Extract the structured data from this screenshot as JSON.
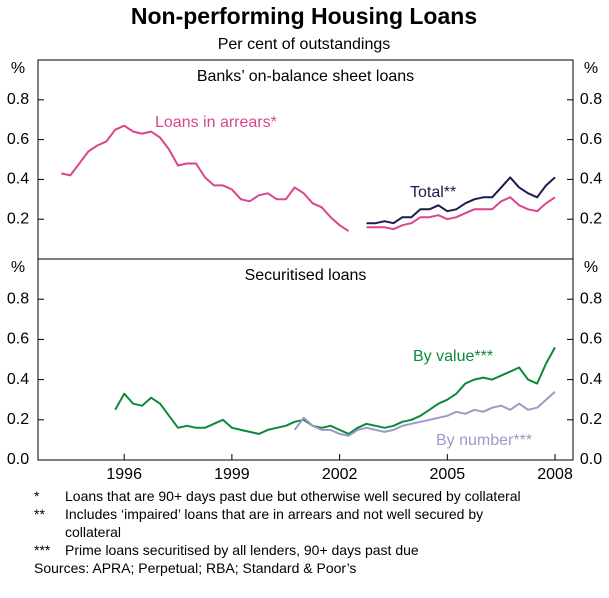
{
  "title": "Non-performing Housing Loans",
  "subtitle": "Per cent of outstandings",
  "chart_data": [
    {
      "type": "line",
      "title": "Banks’ on-balance sheet loans",
      "y_unit": "%",
      "xlim": [
        1993.6,
        2008.5
      ],
      "ylim": [
        0,
        1.0
      ],
      "yticks": [
        0.2,
        0.4,
        0.6,
        0.8
      ],
      "x": [
        1994.25,
        1994.5,
        1994.75,
        1995,
        1995.25,
        1995.5,
        1995.75,
        1996,
        1996.25,
        1996.5,
        1996.75,
        1997,
        1997.25,
        1997.5,
        1997.75,
        1998,
        1998.25,
        1998.5,
        1998.75,
        1999,
        1999.25,
        1999.5,
        1999.75,
        2000,
        2000.25,
        2000.5,
        2000.75,
        2001,
        2001.25,
        2001.5,
        2001.75,
        2002,
        2002.25,
        2002.5,
        2002.75,
        2003,
        2003.25,
        2003.5,
        2003.75,
        2004,
        2004.25,
        2004.5,
        2004.75,
        2005,
        2005.25,
        2005.5,
        2005.75,
        2006,
        2006.25,
        2006.5,
        2006.75,
        2007,
        2007.25,
        2007.5,
        2007.75,
        2008
      ],
      "series": [
        {
          "name": "Loans in arrears*",
          "color": "#d8468c",
          "values": [
            0.43,
            0.42,
            0.48,
            0.54,
            0.57,
            0.59,
            0.65,
            0.67,
            0.64,
            0.63,
            0.64,
            0.61,
            0.55,
            0.47,
            0.48,
            0.48,
            0.41,
            0.37,
            0.37,
            0.35,
            0.3,
            0.29,
            0.32,
            0.33,
            0.3,
            0.3,
            0.36,
            0.33,
            0.28,
            0.26,
            0.21,
            0.17,
            0.14,
            null,
            0.16,
            0.16,
            0.16,
            0.15,
            0.17,
            0.18,
            0.21,
            0.21,
            0.22,
            0.2,
            0.21,
            0.23,
            0.25,
            0.25,
            0.25,
            0.29,
            0.31,
            0.27,
            0.25,
            0.24,
            0.28,
            0.31
          ]
        },
        {
          "name": "Total**",
          "color": "#1b1b4d",
          "values": [
            null,
            null,
            null,
            null,
            null,
            null,
            null,
            null,
            null,
            null,
            null,
            null,
            null,
            null,
            null,
            null,
            null,
            null,
            null,
            null,
            null,
            null,
            null,
            null,
            null,
            null,
            null,
            null,
            null,
            null,
            null,
            null,
            null,
            null,
            0.18,
            0.18,
            0.19,
            0.18,
            0.21,
            0.21,
            0.25,
            0.25,
            0.27,
            0.24,
            0.25,
            0.28,
            0.3,
            0.31,
            0.31,
            0.36,
            0.41,
            0.36,
            0.33,
            0.31,
            0.37,
            0.41
          ]
        }
      ]
    },
    {
      "type": "line",
      "title": "Securitised loans",
      "y_unit": "%",
      "xlim": [
        1993.6,
        2008.5
      ],
      "ylim": [
        0,
        1.0
      ],
      "yticks": [
        {
          "value": 0,
          "label": "0.0"
        },
        0.2,
        0.4,
        0.6,
        0.8
      ],
      "xticks": [
        1996,
        1999,
        2002,
        2005,
        2008
      ],
      "x": [
        1995.75,
        1996,
        1996.25,
        1996.5,
        1996.75,
        1997,
        1997.25,
        1997.5,
        1997.75,
        1998,
        1998.25,
        1998.5,
        1998.75,
        1999,
        1999.25,
        1999.5,
        1999.75,
        2000,
        2000.25,
        2000.5,
        2000.75,
        2001,
        2001.25,
        2001.5,
        2001.75,
        2002,
        2002.25,
        2002.5,
        2002.75,
        2003,
        2003.25,
        2003.5,
        2003.75,
        2004,
        2004.25,
        2004.5,
        2004.75,
        2005,
        2005.25,
        2005.5,
        2005.75,
        2006,
        2006.25,
        2006.5,
        2006.75,
        2007,
        2007.25,
        2007.5,
        2007.75,
        2008
      ],
      "series": [
        {
          "name": "By value***",
          "color": "#0c8a3c",
          "values": [
            0.25,
            0.33,
            0.28,
            0.27,
            0.31,
            0.28,
            0.22,
            0.16,
            0.17,
            0.16,
            0.16,
            0.18,
            0.2,
            0.16,
            0.15,
            0.14,
            0.13,
            0.15,
            0.16,
            0.17,
            0.19,
            0.2,
            0.17,
            0.16,
            0.17,
            0.15,
            0.13,
            0.16,
            0.18,
            0.17,
            0.16,
            0.17,
            0.19,
            0.2,
            0.22,
            0.25,
            0.28,
            0.3,
            0.33,
            0.38,
            0.4,
            0.41,
            0.4,
            0.42,
            0.44,
            0.46,
            0.4,
            0.38,
            0.48,
            0.56
          ]
        },
        {
          "name": "By number***",
          "color": "#9c9ac8",
          "values": [
            null,
            null,
            null,
            null,
            null,
            null,
            null,
            null,
            null,
            null,
            null,
            null,
            null,
            null,
            null,
            null,
            null,
            null,
            null,
            null,
            0.15,
            0.21,
            0.17,
            0.15,
            0.15,
            0.13,
            0.12,
            0.15,
            0.16,
            0.15,
            0.14,
            0.15,
            0.17,
            0.18,
            0.19,
            0.2,
            0.21,
            0.22,
            0.24,
            0.23,
            0.25,
            0.24,
            0.26,
            0.27,
            0.25,
            0.28,
            0.25,
            0.26,
            0.3,
            0.34
          ]
        }
      ]
    }
  ],
  "footnotes": [
    {
      "marker": "*",
      "text": "Loans that are 90+ days past due but otherwise well secured by collateral"
    },
    {
      "marker": "**",
      "text": "Includes ‘impaired’ loans that are in arrears and not well secured by collateral"
    },
    {
      "marker": "***",
      "text": "Prime loans securitised by all lenders, 90+ days past due"
    }
  ],
  "sources": "Sources: APRA; Perpetual; RBA; Standard & Poor’s"
}
